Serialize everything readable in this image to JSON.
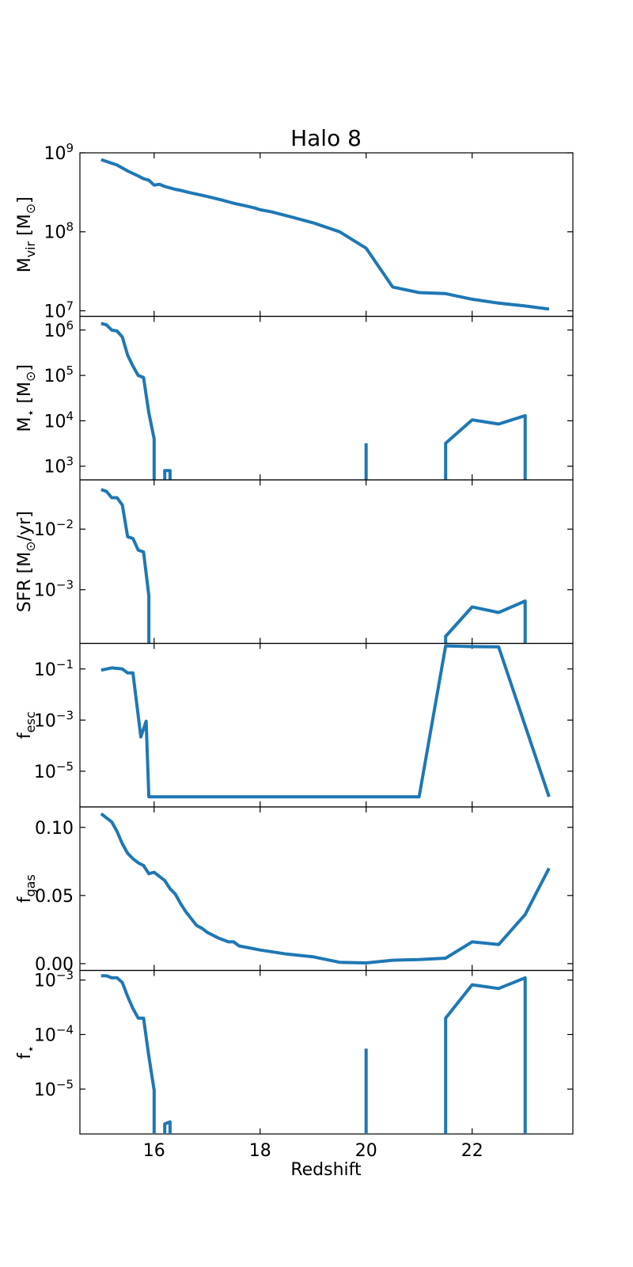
{
  "chart_data": {
    "type": "line",
    "title": "Halo 8",
    "xlabel": "Redshift",
    "xlim": [
      14.6,
      23.9
    ],
    "xticks": [
      16,
      18,
      20,
      22
    ],
    "xtick_labels": [
      "16",
      "18",
      "20",
      "22"
    ],
    "line_color": "#1f77b4",
    "panels": [
      {
        "id": "mvir",
        "ylabel": {
          "main": "M",
          "sub": "vir",
          "tail": " [M",
          "sym": "⊙",
          "end": "]"
        },
        "scale": "log",
        "ylim": [
          8500000,
          1000000000
        ],
        "yticks": [
          {
            "base": "10",
            "exp": "7",
            "value": 10000000
          },
          {
            "base": "10",
            "exp": "8",
            "value": 100000000
          },
          {
            "base": "10",
            "exp": "9",
            "value": 1000000000
          }
        ],
        "segments": [
          [
            [
              15.0,
              820000000.0
            ],
            [
              15.3,
              700000000.0
            ],
            [
              15.5,
              590000000.0
            ],
            [
              15.7,
              510000000.0
            ],
            [
              15.8,
              470000000.0
            ],
            [
              15.9,
              450000000.0
            ],
            [
              16.0,
              390000000.0
            ],
            [
              16.1,
              400000000.0
            ],
            [
              16.2,
              375000000.0
            ],
            [
              16.3,
              360000000.0
            ],
            [
              16.4,
              345000000.0
            ],
            [
              16.5,
              335000000.0
            ],
            [
              16.7,
              310000000.0
            ],
            [
              16.9,
              290000000.0
            ],
            [
              17.1,
              270000000.0
            ],
            [
              17.3,
              250000000.0
            ],
            [
              17.5,
              230000000.0
            ],
            [
              17.7,
              215000000.0
            ],
            [
              17.9,
              200000000.0
            ],
            [
              18.0,
              190000000.0
            ],
            [
              18.2,
              180000000.0
            ],
            [
              18.5,
              160000000.0
            ],
            [
              19.0,
              130000000.0
            ],
            [
              19.5,
              100000000.0
            ],
            [
              20.0,
              62000000.0
            ],
            [
              20.5,
              20000000.0
            ],
            [
              21.0,
              17000000.0
            ],
            [
              21.5,
              16500000.0
            ],
            [
              22.0,
              14000000.0
            ],
            [
              22.5,
              12500000.0
            ],
            [
              23.0,
              11500000.0
            ],
            [
              23.45,
              10500000.0
            ]
          ]
        ]
      },
      {
        "id": "mstar",
        "ylabel": {
          "main": "M",
          "sub": "⋆",
          "tail": " [M",
          "sym": "⊙",
          "end": "]"
        },
        "scale": "log",
        "ylim": [
          500,
          2000000
        ],
        "yticks": [
          {
            "base": "10",
            "exp": "3",
            "value": 1000
          },
          {
            "base": "10",
            "exp": "4",
            "value": 10000
          },
          {
            "base": "10",
            "exp": "5",
            "value": 100000
          },
          {
            "base": "10",
            "exp": "6",
            "value": 1000000
          }
        ],
        "segments": [
          [
            [
              15.0,
              1400000.0
            ],
            [
              15.1,
              1300000.0
            ],
            [
              15.2,
              1000000.0
            ],
            [
              15.3,
              950000.0
            ],
            [
              15.4,
              700000.0
            ],
            [
              15.5,
              280000.0
            ],
            [
              15.6,
              160000.0
            ],
            [
              15.7,
              100000.0
            ],
            [
              15.8,
              90000.0
            ],
            [
              15.9,
              15000.0
            ],
            [
              16.0,
              4000.0
            ],
            [
              16.0,
              500
            ]
          ],
          [
            [
              16.2,
              500
            ],
            [
              16.2,
              800
            ],
            [
              16.3,
              800
            ],
            [
              16.3,
              500
            ]
          ],
          [
            [
              20.0,
              500
            ],
            [
              20.0,
              3200.0
            ]
          ],
          [
            [
              21.5,
              500
            ],
            [
              21.5,
              3200.0
            ],
            [
              22.0,
              10500.0
            ],
            [
              22.5,
              8500.0
            ],
            [
              23.0,
              13000.0
            ],
            [
              23.0,
              500
            ]
          ]
        ]
      },
      {
        "id": "sfr",
        "ylabel": {
          "main": "SFR [M",
          "sub": "",
          "tail": "",
          "sym": "⊙",
          "end": "/yr]"
        },
        "scale": "log",
        "ylim": [
          0.00013,
          0.065
        ],
        "yticks": [
          {
            "base": "10",
            "exp": "−3",
            "value": 0.001
          },
          {
            "base": "10",
            "exp": "−2",
            "value": 0.01
          }
        ],
        "segments": [
          [
            [
              15.0,
              0.045
            ],
            [
              15.1,
              0.042
            ],
            [
              15.2,
              0.033
            ],
            [
              15.3,
              0.033
            ],
            [
              15.4,
              0.025
            ],
            [
              15.5,
              0.0075
            ],
            [
              15.6,
              0.007
            ],
            [
              15.7,
              0.0045
            ],
            [
              15.8,
              0.0042
            ],
            [
              15.9,
              0.0008
            ],
            [
              15.9,
              0.00013
            ]
          ],
          [
            [
              21.5,
              0.00013
            ],
            [
              21.5,
              0.00017
            ],
            [
              22.0,
              0.00052
            ],
            [
              22.5,
              0.00042
            ],
            [
              23.0,
              0.00065
            ],
            [
              23.0,
              0.00013
            ]
          ]
        ]
      },
      {
        "id": "fesc",
        "ylabel": {
          "main": "f",
          "sub": "esc",
          "tail": "",
          "sym": "",
          "end": ""
        },
        "scale": "log",
        "ylim": [
          4e-07,
          1.0
        ],
        "yticks": [
          {
            "base": "10",
            "exp": "−5",
            "value": 1e-05
          },
          {
            "base": "10",
            "exp": "−3",
            "value": 0.001
          },
          {
            "base": "10",
            "exp": "−1",
            "value": 0.1
          }
        ],
        "segments": [
          [
            [
              15.0,
              0.09
            ],
            [
              15.2,
              0.11
            ],
            [
              15.4,
              0.1
            ],
            [
              15.5,
              0.07
            ],
            [
              15.6,
              0.07
            ],
            [
              15.75,
              0.00022
            ],
            [
              15.85,
              0.0009
            ],
            [
              15.9,
              1e-06
            ],
            [
              21.0,
              1e-06
            ],
            [
              21.5,
              0.8
            ],
            [
              22.0,
              0.75
            ],
            [
              22.5,
              0.73
            ],
            [
              23.45,
              1e-06
            ]
          ]
        ]
      },
      {
        "id": "fgas",
        "ylabel": {
          "main": "f",
          "sub": "gas",
          "tail": "",
          "sym": "",
          "end": ""
        },
        "scale": "linear",
        "ylim": [
          -0.005,
          0.115
        ],
        "yticks": [
          {
            "label": "0.00",
            "value": 0.0
          },
          {
            "label": "0.05",
            "value": 0.05
          },
          {
            "label": "0.10",
            "value": 0.1
          }
        ],
        "segments": [
          [
            [
              15.0,
              0.11
            ],
            [
              15.2,
              0.104
            ],
            [
              15.3,
              0.097
            ],
            [
              15.4,
              0.088
            ],
            [
              15.5,
              0.081
            ],
            [
              15.6,
              0.077
            ],
            [
              15.7,
              0.074
            ],
            [
              15.8,
              0.072
            ],
            [
              15.9,
              0.066
            ],
            [
              16.0,
              0.067
            ],
            [
              16.2,
              0.061
            ],
            [
              16.3,
              0.055
            ],
            [
              16.4,
              0.051
            ],
            [
              16.5,
              0.044
            ],
            [
              16.6,
              0.038
            ],
            [
              16.8,
              0.028
            ],
            [
              16.9,
              0.026
            ],
            [
              17.0,
              0.023
            ],
            [
              17.2,
              0.019
            ],
            [
              17.4,
              0.016
            ],
            [
              17.5,
              0.016
            ],
            [
              17.6,
              0.013
            ],
            [
              18.0,
              0.01
            ],
            [
              18.5,
              0.007
            ],
            [
              19.0,
              0.005
            ],
            [
              19.5,
              0.001
            ],
            [
              20.0,
              0.0005
            ],
            [
              20.5,
              0.0025
            ],
            [
              21.0,
              0.003
            ],
            [
              21.5,
              0.004
            ],
            [
              22.0,
              0.016
            ],
            [
              22.5,
              0.014
            ],
            [
              23.0,
              0.036
            ],
            [
              23.45,
              0.07
            ]
          ]
        ]
      },
      {
        "id": "fstar",
        "ylabel": {
          "main": "f",
          "sub": "⋆",
          "tail": "",
          "sym": "",
          "end": ""
        },
        "scale": "log",
        "ylim": [
          1.5e-06,
          0.0015
        ],
        "yticks": [
          {
            "base": "10",
            "exp": "−5",
            "value": 1e-05
          },
          {
            "base": "10",
            "exp": "−4",
            "value": 0.0001
          },
          {
            "base": "10",
            "exp": "−3",
            "value": 0.001
          }
        ],
        "segments": [
          [
            [
              15.0,
              0.0012
            ],
            [
              15.1,
              0.0012
            ],
            [
              15.2,
              0.0011
            ],
            [
              15.3,
              0.0011
            ],
            [
              15.4,
              0.0009
            ],
            [
              15.5,
              0.0005
            ],
            [
              15.6,
              0.0003
            ],
            [
              15.7,
              0.0002
            ],
            [
              15.8,
              0.0002
            ],
            [
              15.9,
              4e-05
            ],
            [
              16.0,
              9.5e-06
            ],
            [
              16.0,
              1.5e-06
            ]
          ],
          [
            [
              16.2,
              1.5e-06
            ],
            [
              16.2,
              2.3e-06
            ],
            [
              16.3,
              2.5e-06
            ],
            [
              16.3,
              1.5e-06
            ]
          ],
          [
            [
              20.0,
              1.5e-06
            ],
            [
              20.0,
              5.5e-05
            ]
          ],
          [
            [
              21.5,
              1.5e-06
            ],
            [
              21.5,
              0.0002
            ],
            [
              22.0,
              0.00082
            ],
            [
              22.5,
              0.0007
            ],
            [
              23.0,
              0.0011
            ],
            [
              23.0,
              1.5e-06
            ]
          ]
        ]
      }
    ]
  }
}
